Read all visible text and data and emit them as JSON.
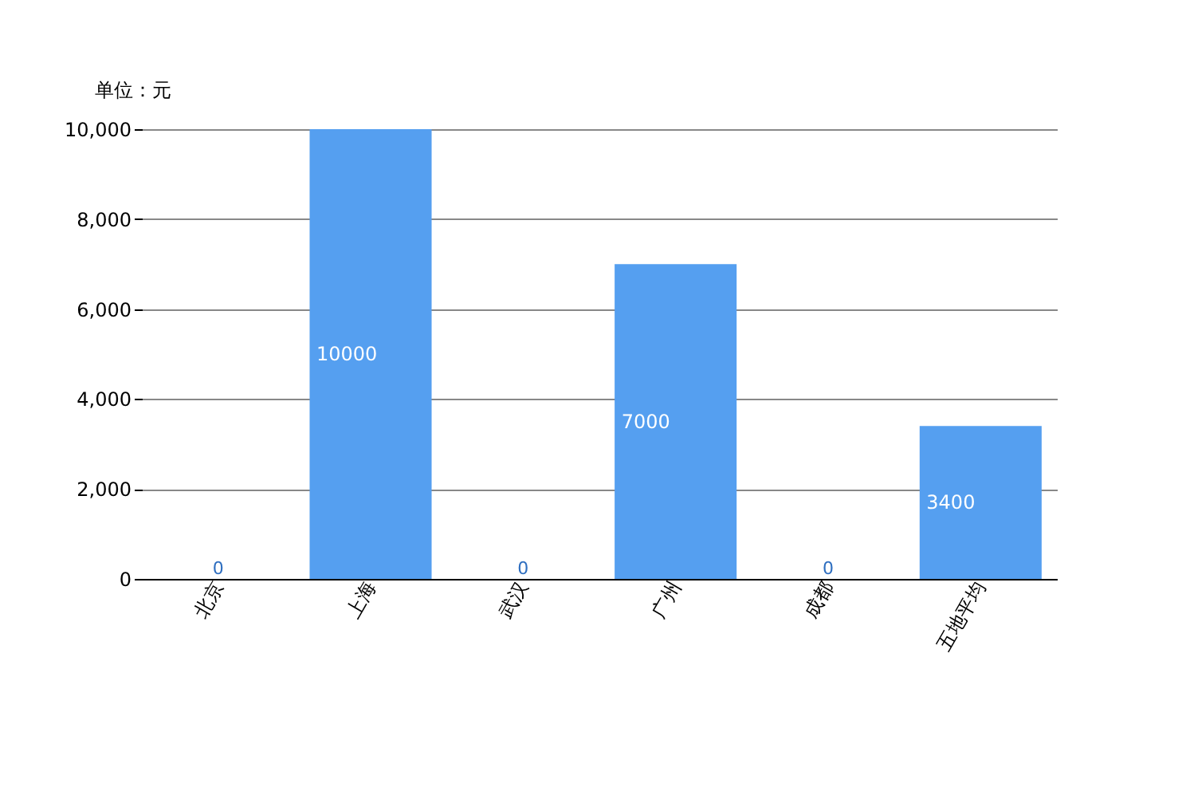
{
  "chart_data": {
    "type": "bar",
    "ylabel": "单位：元",
    "categories": [
      "北京",
      "上海",
      "武汉",
      "广州",
      "成都",
      "五地平均"
    ],
    "series": [
      {
        "color": "#559ff0",
        "values": [
          0,
          10000,
          0,
          7000,
          0,
          3400
        ]
      }
    ],
    "ylim": [
      0,
      10000
    ],
    "yticks": [
      0,
      {
        "value": 2000,
        "label": "2,000"
      },
      {
        "value": 4000,
        "label": "4,000"
      },
      {
        "value": 6000,
        "label": "6,000"
      },
      {
        "value": 8000,
        "label": "8,000"
      },
      {
        "value": 10000,
        "label": "10,000"
      }
    ],
    "grid": "y",
    "data_labels": true
  }
}
